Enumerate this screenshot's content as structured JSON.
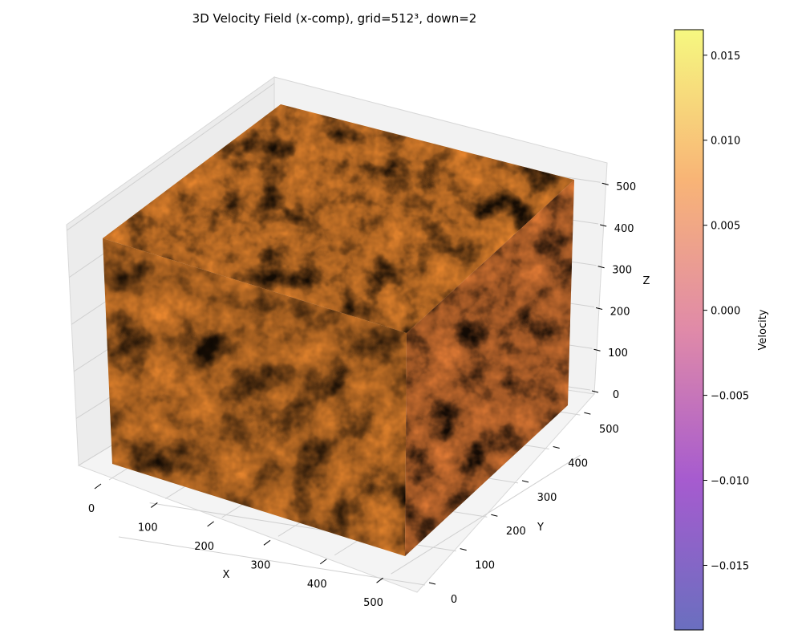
{
  "chart_data": {
    "type": "heatmap",
    "subtype": "3d-voxel-volume",
    "title": "3D Velocity Field (x-comp), grid=512³, down=2",
    "xlabel": "X",
    "ylabel": "Y",
    "zlabel": "Z",
    "xlim": [
      0,
      512
    ],
    "ylim": [
      0,
      512
    ],
    "zlim": [
      0,
      512
    ],
    "x_ticks": [
      0,
      100,
      200,
      300,
      400,
      500
    ],
    "y_ticks": [
      0,
      100,
      200,
      300,
      400,
      500
    ],
    "z_ticks": [
      0,
      100,
      200,
      300,
      400,
      500
    ],
    "grid": true,
    "colormap": "plasma",
    "colorbar": {
      "label": "Velocity",
      "range": [
        -0.0188,
        0.0165
      ],
      "ticks": [
        "0.015",
        "0.010",
        "0.005",
        "0.000",
        "−0.005",
        "−0.010",
        "−0.015"
      ],
      "tick_values": [
        0.015,
        0.01,
        0.005,
        0.0,
        -0.005,
        -0.01,
        -0.015
      ],
      "position": "right"
    },
    "colors": {
      "low": "#6a5acd",
      "mid": "#e879a0",
      "high": "#f7f77a",
      "pane": "#f2f2f2",
      "grid": "#d0d0d0"
    }
  }
}
